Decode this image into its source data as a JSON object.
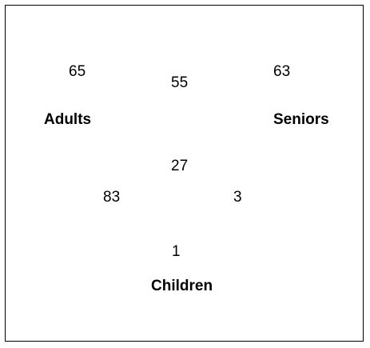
{
  "sets": {
    "adults": "Adults",
    "seniors": "Seniors",
    "children": "Children"
  },
  "regions": {
    "adults_only": "65",
    "adults_seniors": "55",
    "seniors_only": "63",
    "all_three": "27",
    "adults_children": "83",
    "seniors_children": "3",
    "children_only": "1"
  }
}
